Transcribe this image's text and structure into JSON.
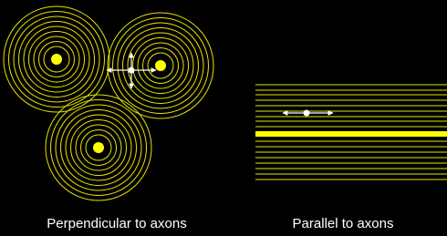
{
  "labels": {
    "perpendicular": "Perpendicular to axons",
    "parallel": "Parallel to axons"
  }
}
